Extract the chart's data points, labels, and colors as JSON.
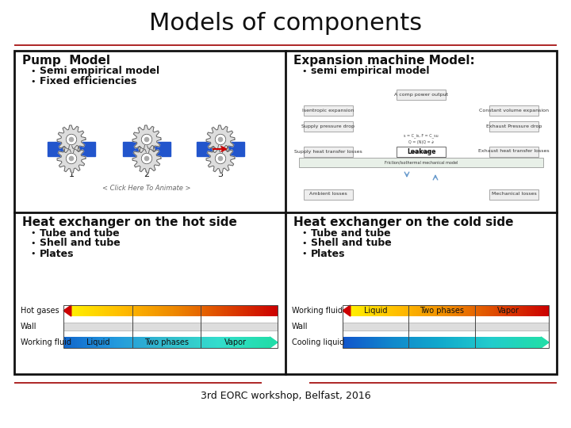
{
  "title": "Models of components",
  "title_fontsize": 22,
  "title_font": "DejaVu Sans",
  "background_color": "#ffffff",
  "divider_line_color": "#a00000",
  "footer_text": "3rd EORC workshop, Belfast, 2016",
  "footer_fontsize": 9,
  "panel_border_color": "#111111",
  "panel_border_lw": 2.0,
  "top_left": {
    "title": "Pump  Model",
    "title_fontsize": 11,
    "title_bold": true,
    "bullets": [
      "Semi empirical model",
      "Fixed efficiencies"
    ],
    "bullet_fontsize": 9,
    "subtext": "< Click Here To Animate >",
    "subtext_fontsize": 6
  },
  "top_right": {
    "title": "Expansion machine Model:",
    "title_fontsize": 11,
    "title_bold": true,
    "bullets": [
      "semi empirical model"
    ],
    "bullet_fontsize": 9
  },
  "bottom_left": {
    "title": "Heat exchanger on the hot side",
    "title_fontsize": 11,
    "title_bold": true,
    "bullets": [
      "Tube and tube",
      "Shell and tube",
      "Plates"
    ],
    "bullet_fontsize": 9,
    "row_labels": [
      "Hot gases",
      "Wall",
      "Working fluid"
    ],
    "row_label_fontsize": 7,
    "seg_labels": [
      "Liquid",
      "Two phases",
      "Vapor"
    ],
    "seg_label_fontsize": 7,
    "hot_colors": [
      "#cc0000",
      "#dd4400",
      "#ee8800",
      "#ffbb00",
      "#ffee00"
    ],
    "wf_colors": [
      "#1166cc",
      "#2299dd",
      "#33bbcc",
      "#33ddcc",
      "#22ddaa"
    ]
  },
  "bottom_right": {
    "title": "Heat exchanger on the cold side",
    "title_fontsize": 11,
    "title_bold": true,
    "bullets": [
      "Tube and tube",
      "Shell and tube",
      "Plates"
    ],
    "bullet_fontsize": 9,
    "row_labels": [
      "Working fluid",
      "Wall",
      "Cooling liquid"
    ],
    "row_label_fontsize": 7,
    "seg_labels": [
      "Liquid",
      "Two phases",
      "Vapor"
    ],
    "seg_label_fontsize": 7,
    "hot_colors": [
      "#cc0000",
      "#dd4400",
      "#ee8800",
      "#ffbb00",
      "#ffee00"
    ],
    "cool_colors": [
      "#1155cc",
      "#1188cc",
      "#11aacc",
      "#22cccc",
      "#22ddaa"
    ]
  }
}
